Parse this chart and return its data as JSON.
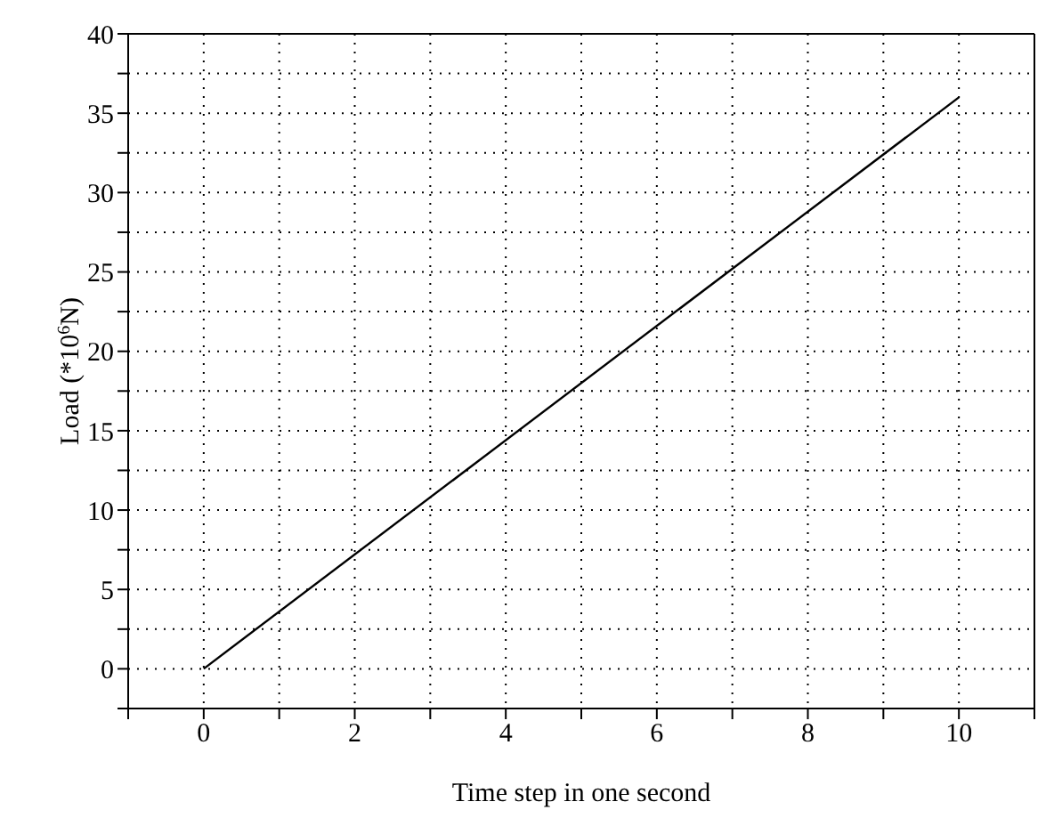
{
  "chart_data": {
    "type": "line",
    "xlabel": "Time step in one second",
    "ylabel": "Load (*10$^{6}$N)",
    "x": [
      0,
      10
    ],
    "series": [
      {
        "color": "#000000",
        "values": [
          0,
          36
        ]
      }
    ],
    "xlim": [
      -1,
      11
    ],
    "xticks": [
      {
        "value": -1,
        "label": null
      },
      0,
      {
        "value": 1,
        "label": null
      },
      2,
      {
        "value": 3,
        "label": null
      },
      4,
      {
        "value": 5,
        "label": null
      },
      6,
      {
        "value": 7,
        "label": null
      },
      8,
      {
        "value": 9,
        "label": null
      },
      10,
      {
        "value": 11,
        "label": null
      }
    ],
    "ylim": [
      -2.5,
      40
    ],
    "yticks": [
      {
        "value": -2.5,
        "label": null
      },
      0,
      {
        "value": 2.5,
        "label": null
      },
      5,
      {
        "value": 7.5,
        "label": null
      },
      10,
      {
        "value": 12.5,
        "label": null
      },
      15,
      {
        "value": 17.5,
        "label": null
      },
      20,
      {
        "value": 22.5,
        "label": null
      },
      25,
      {
        "value": 27.5,
        "label": null
      },
      30,
      {
        "value": 32.5,
        "label": null
      },
      35,
      {
        "value": 37.5,
        "label": null
      },
      40
    ],
    "grid": true,
    "marker": "none",
    "line_style": "solid"
  }
}
